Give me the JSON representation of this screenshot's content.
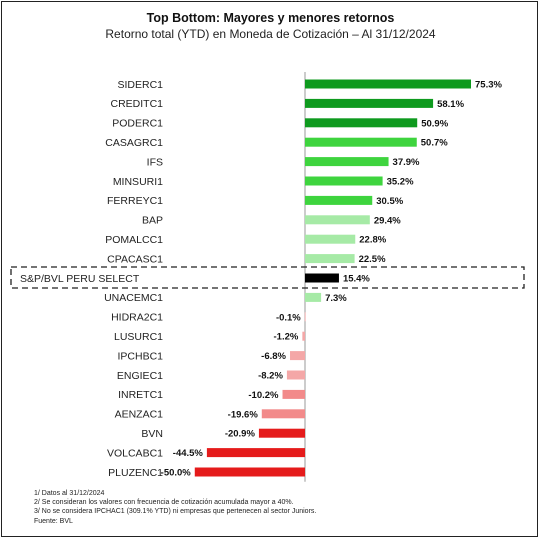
{
  "title": "Top Bottom: Mayores y menores retornos",
  "subtitle": "Retorno total (YTD) en Moneda de Cotización – Al 31/12/2024",
  "chart_data": {
    "type": "bar",
    "orientation": "horizontal",
    "categories": [
      "SIDERC1",
      "CREDITC1",
      "PODERC1",
      "CASAGRC1",
      "IFS",
      "MINSURI1",
      "FERREYC1",
      "BAP",
      "POMALCC1",
      "CPACASC1",
      "S&P/BVL PERU SELECT",
      "UNACEMC1",
      "HIDRA2C1",
      "LUSURC1",
      "IPCHBC1",
      "ENGIEC1",
      "INRETC1",
      "AENZAC1",
      "BVN",
      "VOLCABC1",
      "PLUZENC1"
    ],
    "values": [
      75.3,
      58.1,
      50.9,
      50.7,
      37.9,
      35.2,
      30.5,
      29.4,
      22.8,
      22.5,
      15.4,
      7.3,
      -0.1,
      -1.2,
      -6.8,
      -8.2,
      -10.2,
      -19.6,
      -20.9,
      -44.5,
      -50.0
    ],
    "value_labels": [
      "75.3%",
      "58.1%",
      "50.9%",
      "50.7%",
      "37.9%",
      "35.2%",
      "30.5%",
      "29.4%",
      "22.8%",
      "22.5%",
      "15.4%",
      "7.3%",
      "-0.1%",
      "-1.2%",
      "-6.8%",
      "-8.2%",
      "-10.2%",
      "-19.6%",
      "-20.9%",
      "-44.5%",
      "-50.0%"
    ],
    "colors": [
      "#0e9a1e",
      "#0e9a1e",
      "#0e9a1e",
      "#3ed43e",
      "#3ed43e",
      "#3ed43e",
      "#3ed43e",
      "#a6eaa6",
      "#a6eaa6",
      "#a6eaa6",
      "#000000",
      "#a6eaa6",
      "#f4a7a7",
      "#f4a7a7",
      "#f4a7a7",
      "#f4a7a7",
      "#f28a8a",
      "#f28a8a",
      "#e51b1b",
      "#e51b1b",
      "#e51b1b"
    ],
    "highlighted_category": "S&P/BVL PERU SELECT",
    "xlim": [
      -50.0,
      75.3
    ],
    "grid": false,
    "legend": "none"
  },
  "notes": [
    "1/  Datos al 31/12/2024",
    "2/ Se consideran los valores con frecuencia de cotización acumulada mayor a 40%.",
    "3/ No se considera IPCHAC1 (309.1% YTD) ni empresas que pertenecen al sector Juniors.",
    "Fuente: BVL"
  ]
}
